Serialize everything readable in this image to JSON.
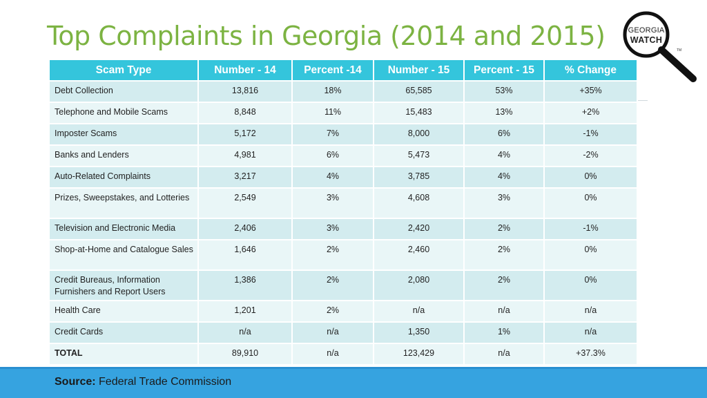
{
  "title": "Top Complaints in Georgia (2014 and 2015)",
  "logo": {
    "line1": "GEORGIA",
    "line2": "WATCH",
    "tm": "TM"
  },
  "table": {
    "headers": [
      "Scam Type",
      "Number - 14",
      "Percent -14",
      "Number - 15",
      "Percent - 15",
      "% Change"
    ],
    "rows": [
      {
        "type": "Debt Collection",
        "n14": "13,816",
        "p14": "18%",
        "n15": "65,585",
        "p15": "53%",
        "change": "+35%"
      },
      {
        "type": "Telephone and Mobile Scams",
        "n14": "8,848",
        "p14": "11%",
        "n15": "15,483",
        "p15": "13%",
        "change": "+2%"
      },
      {
        "type": "Imposter Scams",
        "n14": "5,172",
        "p14": "7%",
        "n15": "8,000",
        "p15": "6%",
        "change": "-1%"
      },
      {
        "type": "Banks and Lenders",
        "n14": "4,981",
        "p14": "6%",
        "n15": "5,473",
        "p15": "4%",
        "change": "-2%"
      },
      {
        "type": "Auto-Related Complaints",
        "n14": "3,217",
        "p14": "4%",
        "n15": "3,785",
        "p15": "4%",
        "change": "0%"
      },
      {
        "type": "Prizes, Sweepstakes, and Lotteries",
        "n14": "2,549",
        "p14": "3%",
        "n15": "4,608",
        "p15": "3%",
        "change": "0%"
      },
      {
        "type": "Television and Electronic Media",
        "n14": "2,406",
        "p14": "3%",
        "n15": "2,420",
        "p15": "2%",
        "change": "-1%"
      },
      {
        "type": "Shop-at-Home and Catalogue Sales",
        "n14": "1,646",
        "p14": "2%",
        "n15": "2,460",
        "p15": "2%",
        "change": "0%"
      },
      {
        "type": "Credit Bureaus, Information Furnishers and Report Users",
        "n14": "1,386",
        "p14": "2%",
        "n15": "2,080",
        "p15": "2%",
        "change": "0%"
      },
      {
        "type": "Health Care",
        "n14": "1,201",
        "p14": "2%",
        "n15": "n/a",
        "p15": "n/a",
        "change": "n/a"
      },
      {
        "type": "Credit Cards",
        "n14": "n/a",
        "p14": "n/a",
        "n15": "1,350",
        "p15": "1%",
        "change": "n/a"
      },
      {
        "type": "TOTAL",
        "n14": "89,910",
        "p14": "n/a",
        "n15": "123,429",
        "p15": "n/a",
        "change": "+37.3%"
      }
    ]
  },
  "source": {
    "label": "Source:",
    "text": "Federal Trade Commission"
  },
  "colors": {
    "title": "#7cb342",
    "header": "#34c5dc",
    "row_odd": "#d3ecef",
    "row_even": "#e9f6f7",
    "footer": "#36a3e0"
  }
}
